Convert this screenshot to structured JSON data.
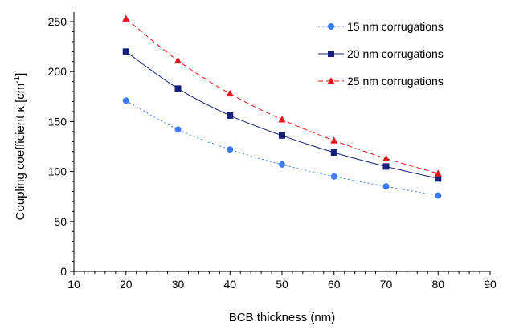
{
  "chart_data": {
    "type": "line",
    "xlabel": "BCB thickness (nm)",
    "ylabel_main": "Coupling coefficient  κ [cm",
    "ylabel_sup": "-1",
    "ylabel_close": "]",
    "xlim": [
      10,
      90
    ],
    "ylim": [
      0,
      250
    ],
    "x_ticks": [
      10,
      20,
      30,
      40,
      50,
      60,
      70,
      80,
      90
    ],
    "y_ticks": [
      0,
      50,
      100,
      150,
      200,
      250
    ],
    "x_tick_labels": [
      "10",
      "20",
      "30",
      "40",
      "50",
      "60",
      "70",
      "80",
      "90"
    ],
    "y_tick_labels": [
      "0",
      "50",
      "100",
      "150",
      "200",
      "250"
    ],
    "grid": false,
    "legend_position": "top-right",
    "x": [
      20,
      30,
      40,
      50,
      60,
      70,
      80
    ],
    "series": [
      {
        "name": "15 nm corrugations",
        "marker": "circle",
        "color": "#3b7df0",
        "dash": "2 3",
        "values": [
          171,
          142,
          122,
          107,
          95,
          85,
          76
        ]
      },
      {
        "name": "20 nm corrugations",
        "marker": "square",
        "color": "#15207a",
        "dash": "",
        "values": [
          220,
          183,
          156,
          136,
          119,
          105,
          93
        ]
      },
      {
        "name": "25 nm corrugations",
        "marker": "triangle",
        "color": "#e8141a",
        "dash": "6 4",
        "values": [
          253,
          211,
          178,
          152,
          131,
          113,
          98
        ]
      }
    ]
  }
}
